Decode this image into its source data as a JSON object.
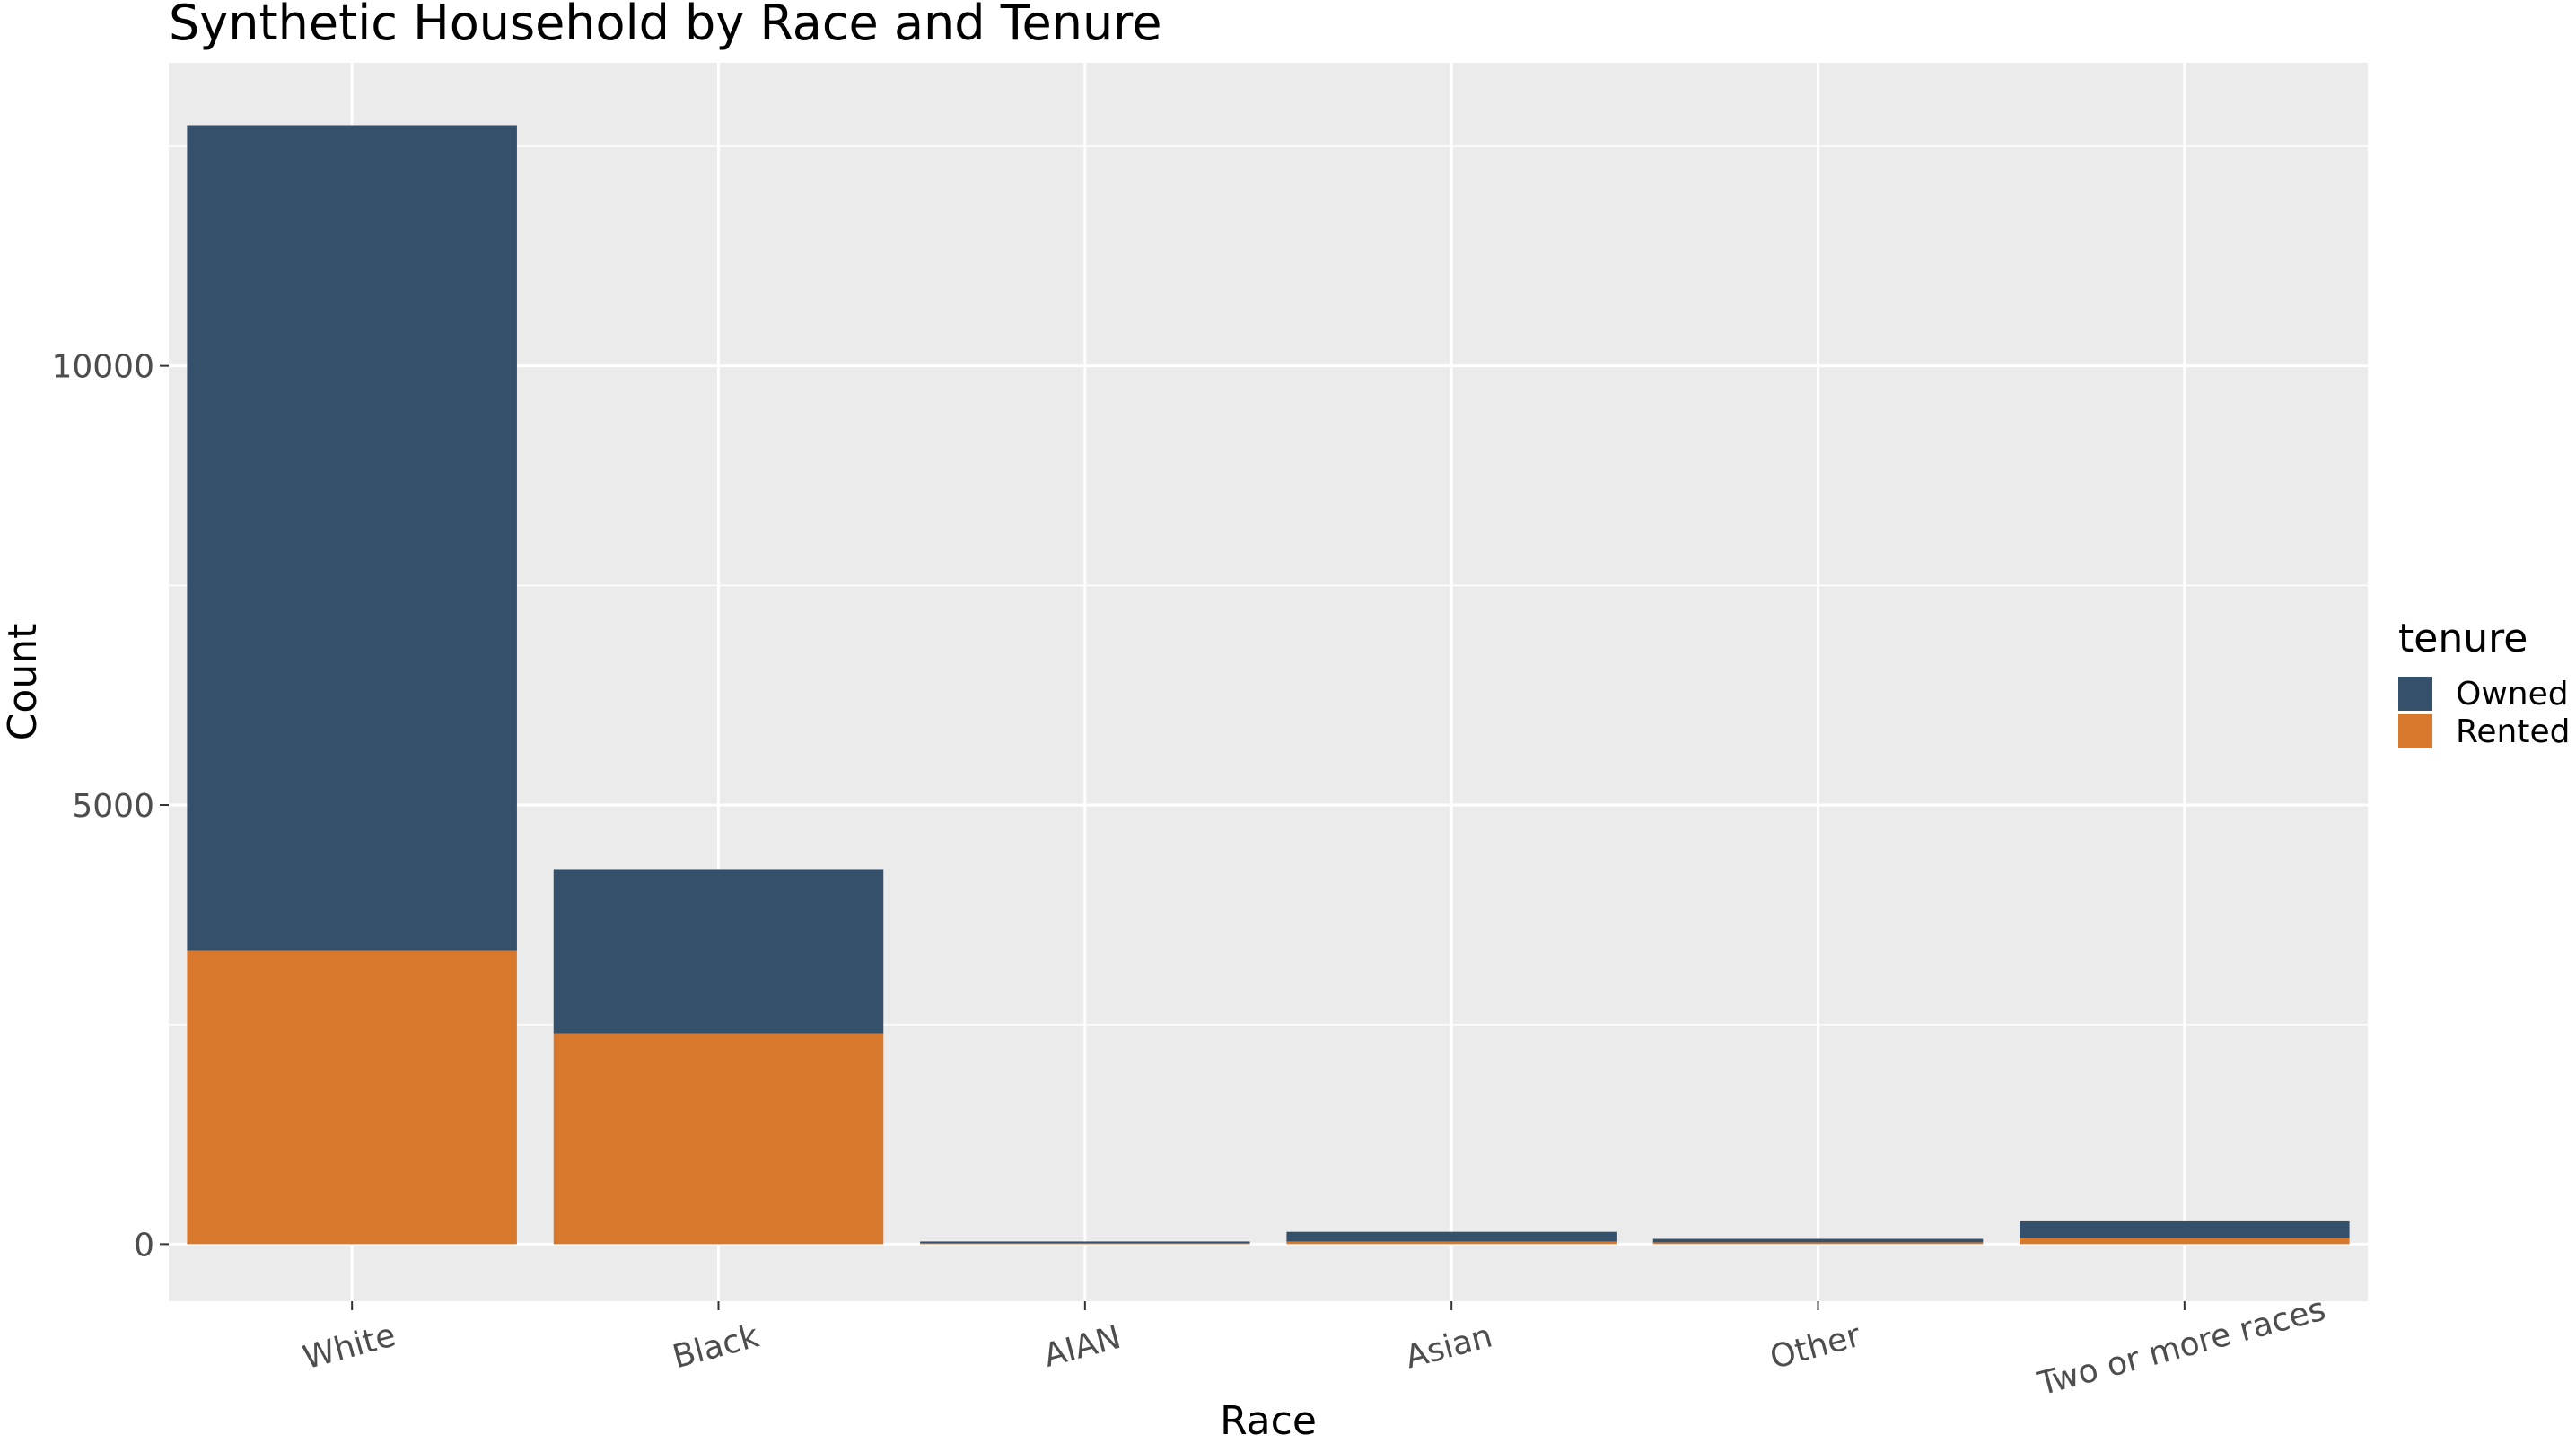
{
  "chart_data": {
    "type": "bar",
    "stacked": true,
    "title": "Synthetic Household by Race and Tenure",
    "xlabel": "Race",
    "ylabel": "Count",
    "categories": [
      "White",
      "Black",
      "AIAN",
      "Asian",
      "Other",
      "Two or more races"
    ],
    "series": [
      {
        "name": "Owned",
        "color": "#34506a",
        "values": [
          9400,
          1870,
          20,
          110,
          40,
          190
        ]
      },
      {
        "name": "Rented",
        "color": "#d8782d",
        "values": [
          3340,
          2400,
          10,
          30,
          20,
          70
        ]
      }
    ],
    "yticks": [
      0,
      5000,
      10000
    ],
    "ylim": [
      -650,
      13450
    ],
    "grid": true,
    "legend": {
      "title": "tenure",
      "position": "right",
      "entries": [
        "Owned",
        "Rented"
      ]
    },
    "colors": {
      "panel": "#ebebeb",
      "grid": "#ffffff",
      "tick_text": "#4d4d4d"
    }
  }
}
